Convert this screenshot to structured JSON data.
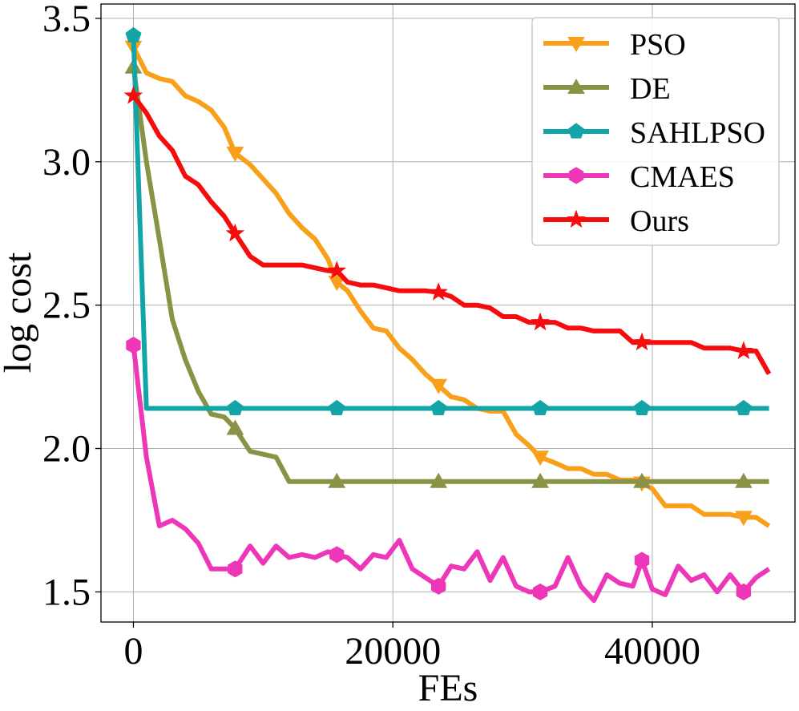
{
  "chart_data": {
    "type": "line",
    "title": "",
    "xlabel": "FEs",
    "ylabel": "log cost",
    "xlim": [
      -2500,
      51000
    ],
    "ylim": [
      1.395,
      3.55
    ],
    "xticks": [
      0,
      20000,
      40000
    ],
    "xtick_labels": [
      "0",
      "20000",
      "40000"
    ],
    "yticks": [
      1.5,
      2.0,
      2.5,
      3.0,
      3.5
    ],
    "ytick_labels": [
      "1.5",
      "2.0",
      "2.5",
      "3.0",
      "3.5"
    ],
    "grid": true,
    "legend_position": "top-right",
    "series": [
      {
        "name": "PSO",
        "color": "#F9A01B",
        "marker": "triangle-down",
        "x": [
          0,
          1000,
          2000,
          3000,
          4000,
          5000,
          6000,
          7000,
          7840,
          9000,
          10000,
          11000,
          12000,
          13000,
          14000,
          15000,
          15680,
          16500,
          17500,
          18500,
          19500,
          20500,
          21500,
          22500,
          23520,
          24500,
          25500,
          26500,
          27500,
          28500,
          29500,
          30500,
          31360,
          32500,
          33500,
          34500,
          35500,
          36500,
          37500,
          38500,
          39200,
          40000,
          41000,
          42000,
          43000,
          44000,
          45000,
          46000,
          47040,
          48000,
          49000
        ],
        "y": [
          3.4,
          3.31,
          3.29,
          3.28,
          3.23,
          3.21,
          3.18,
          3.12,
          3.03,
          2.99,
          2.94,
          2.89,
          2.82,
          2.77,
          2.73,
          2.66,
          2.58,
          2.55,
          2.48,
          2.42,
          2.41,
          2.35,
          2.31,
          2.26,
          2.22,
          2.18,
          2.17,
          2.14,
          2.13,
          2.13,
          2.05,
          2.01,
          1.97,
          1.95,
          1.93,
          1.93,
          1.91,
          1.91,
          1.89,
          1.89,
          1.88,
          1.86,
          1.8,
          1.8,
          1.8,
          1.77,
          1.77,
          1.77,
          1.76,
          1.76,
          1.73
        ],
        "marker_every": [
          0,
          8,
          16,
          24,
          32,
          40,
          48
        ]
      },
      {
        "name": "DE",
        "color": "#8A9246",
        "marker": "triangle-up",
        "x": [
          0,
          1000,
          2000,
          3000,
          4000,
          5000,
          6000,
          7000,
          7840,
          9000,
          10000,
          11000,
          12000,
          13000,
          14000,
          15000,
          15680,
          23520,
          31360,
          39200,
          47040,
          49000
        ],
        "y": [
          3.33,
          3.0,
          2.73,
          2.45,
          2.31,
          2.2,
          2.12,
          2.11,
          2.07,
          1.99,
          1.98,
          1.97,
          1.885,
          1.885,
          1.885,
          1.885,
          1.885,
          1.885,
          1.885,
          1.885,
          1.885,
          1.885
        ],
        "marker_every": [
          0,
          8,
          16,
          17,
          18,
          19,
          20
        ]
      },
      {
        "name": "SAHLPSO",
        "color": "#12A4A6",
        "marker": "pentagon",
        "x": [
          0,
          1000,
          2000,
          7840,
          15680,
          23520,
          31360,
          39200,
          47040,
          49000
        ],
        "y": [
          3.44,
          2.14,
          2.14,
          2.14,
          2.14,
          2.14,
          2.14,
          2.14,
          2.14,
          2.14
        ],
        "marker_every": [
          0,
          3,
          4,
          5,
          6,
          7,
          8
        ]
      },
      {
        "name": "CMAES",
        "color": "#EE36B9",
        "marker": "hexagon",
        "x": [
          0,
          1000,
          2000,
          3000,
          4000,
          5000,
          6000,
          7000,
          7840,
          9000,
          10000,
          11000,
          12000,
          13000,
          14000,
          15000,
          15680,
          16500,
          17500,
          18500,
          19500,
          20500,
          21500,
          22500,
          23520,
          24500,
          25500,
          26500,
          27500,
          28500,
          29500,
          30500,
          31360,
          32500,
          33500,
          34500,
          35500,
          36500,
          37500,
          38500,
          39200,
          40000,
          41000,
          42000,
          43000,
          44000,
          45000,
          46000,
          47040,
          48000,
          49000
        ],
        "y": [
          2.36,
          1.97,
          1.73,
          1.75,
          1.72,
          1.67,
          1.58,
          1.58,
          1.58,
          1.66,
          1.6,
          1.66,
          1.62,
          1.63,
          1.62,
          1.64,
          1.63,
          1.62,
          1.58,
          1.63,
          1.62,
          1.68,
          1.58,
          1.55,
          1.52,
          1.59,
          1.58,
          1.64,
          1.54,
          1.62,
          1.52,
          1.5,
          1.5,
          1.52,
          1.62,
          1.52,
          1.47,
          1.56,
          1.53,
          1.52,
          1.61,
          1.51,
          1.49,
          1.59,
          1.54,
          1.56,
          1.5,
          1.56,
          1.5,
          1.55,
          1.58
        ],
        "marker_every": [
          0,
          8,
          16,
          24,
          32,
          40,
          48
        ]
      },
      {
        "name": "Ours",
        "color": "#F50D0D",
        "marker": "star",
        "x": [
          0,
          1000,
          2000,
          3000,
          4000,
          5000,
          6000,
          7000,
          7840,
          9000,
          10000,
          11000,
          12000,
          13000,
          14000,
          15000,
          15680,
          16500,
          17500,
          18500,
          19500,
          20500,
          21500,
          22500,
          23520,
          24500,
          25500,
          26500,
          27500,
          28500,
          29500,
          30500,
          31360,
          32500,
          33500,
          34500,
          35500,
          36500,
          37500,
          38500,
          39200,
          40000,
          41000,
          42000,
          43000,
          44000,
          45000,
          46000,
          47040,
          48000,
          49000
        ],
        "y": [
          3.23,
          3.17,
          3.09,
          3.04,
          2.95,
          2.92,
          2.86,
          2.81,
          2.75,
          2.67,
          2.64,
          2.64,
          2.64,
          2.64,
          2.63,
          2.62,
          2.62,
          2.58,
          2.57,
          2.57,
          2.56,
          2.55,
          2.55,
          2.55,
          2.545,
          2.53,
          2.5,
          2.5,
          2.49,
          2.46,
          2.46,
          2.44,
          2.44,
          2.44,
          2.42,
          2.42,
          2.41,
          2.41,
          2.41,
          2.37,
          2.37,
          2.37,
          2.37,
          2.37,
          2.37,
          2.35,
          2.35,
          2.35,
          2.34,
          2.34,
          2.26
        ],
        "marker_every": [
          0,
          8,
          16,
          24,
          32,
          40,
          48
        ]
      }
    ]
  }
}
